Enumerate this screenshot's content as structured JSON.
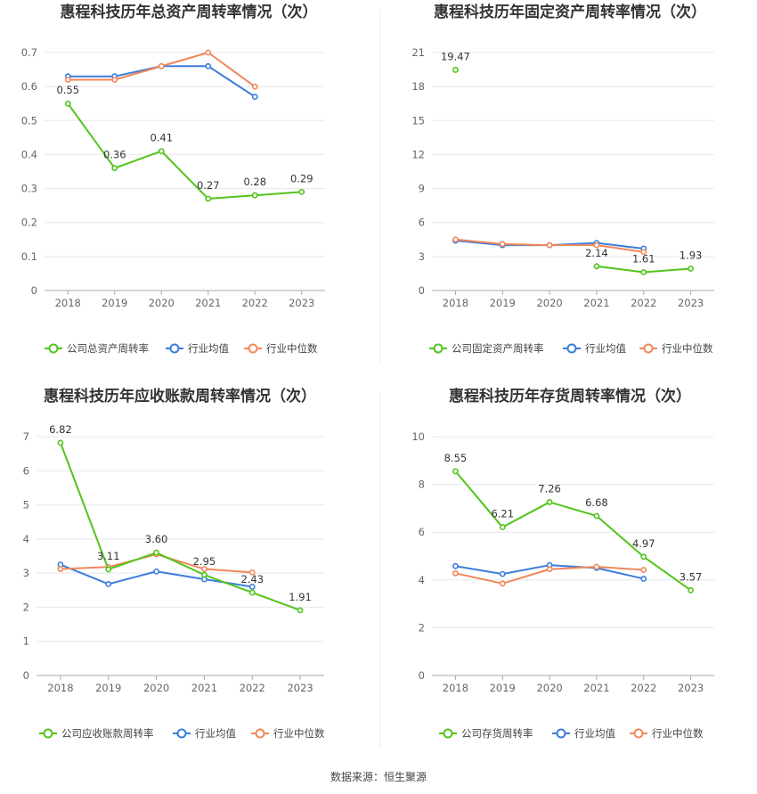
{
  "colors": {
    "company": "#52c41a",
    "industry_avg": "#3d7ddb",
    "industry_median": "#f0875a",
    "grid": "#e6e8ef",
    "axis": "#aaaaaa",
    "divider": "#eeeeee"
  },
  "source_text": "数据来源：恒生聚源",
  "chart_data": [
    {
      "type": "line",
      "title": "惠程科技历年总资产周转率情况（次）",
      "categories": [
        "2018",
        "2019",
        "2020",
        "2021",
        "2022",
        "2023"
      ],
      "ylim": [
        0,
        0.7
      ],
      "yticks": [
        0,
        0.1,
        0.2,
        0.3,
        0.4,
        0.5,
        0.6,
        0.7
      ],
      "ytick_labels": [
        "0",
        "0.1",
        "0.2",
        "0.3",
        "0.4",
        "0.5",
        "0.6",
        "0.7"
      ],
      "grid": true,
      "legend_position": "bottom",
      "series": [
        {
          "name": "公司总资产周转率",
          "role": "company",
          "values": [
            0.55,
            0.36,
            0.41,
            0.27,
            0.28,
            0.29
          ],
          "labels": [
            "0.55",
            "0.36",
            "0.41",
            "0.27",
            "0.28",
            "0.29"
          ]
        },
        {
          "name": "行业均值",
          "role": "industry_avg",
          "values": [
            0.63,
            0.63,
            0.66,
            0.66,
            0.57,
            null
          ]
        },
        {
          "name": "行业中位数",
          "role": "industry_median",
          "values": [
            0.62,
            0.62,
            0.66,
            0.7,
            0.6,
            null
          ]
        }
      ]
    },
    {
      "type": "line",
      "title": "惠程科技历年固定资产周转率情况（次）",
      "categories": [
        "2018",
        "2019",
        "2020",
        "2021",
        "2022",
        "2023"
      ],
      "ylim": [
        0,
        21
      ],
      "yticks": [
        0,
        3,
        6,
        9,
        12,
        15,
        18,
        21
      ],
      "ytick_labels": [
        "0",
        "3",
        "6",
        "9",
        "12",
        "15",
        "18",
        "21"
      ],
      "grid": true,
      "legend_position": "bottom",
      "series": [
        {
          "name": "公司固定资产周转率",
          "role": "company",
          "values": [
            19.47,
            null,
            null,
            2.14,
            1.61,
            1.93
          ],
          "labels": [
            "19.47",
            null,
            null,
            "2.14",
            "1.61",
            "1.93"
          ]
        },
        {
          "name": "行业均值",
          "role": "industry_avg",
          "values": [
            4.4,
            4.0,
            4.0,
            4.2,
            3.7,
            null
          ]
        },
        {
          "name": "行业中位数",
          "role": "industry_median",
          "values": [
            4.5,
            4.1,
            4.0,
            4.0,
            3.4,
            null
          ]
        }
      ]
    },
    {
      "type": "line",
      "title": "惠程科技历年应收账款周转率情况（次）",
      "categories": [
        "2018",
        "2019",
        "2020",
        "2021",
        "2022",
        "2023"
      ],
      "ylim": [
        0,
        7
      ],
      "yticks": [
        0,
        1,
        2,
        3,
        4,
        5,
        6,
        7
      ],
      "ytick_labels": [
        "0",
        "1",
        "2",
        "3",
        "4",
        "5",
        "6",
        "7"
      ],
      "grid": true,
      "legend_position": "bottom",
      "series": [
        {
          "name": "公司应收账款周转率",
          "role": "company",
          "values": [
            6.82,
            3.11,
            3.6,
            2.95,
            2.43,
            1.91
          ],
          "labels": [
            "6.82",
            "3.11",
            "3.60",
            "2.95",
            "2.43",
            "1.91"
          ]
        },
        {
          "name": "行业均值",
          "role": "industry_avg",
          "values": [
            3.25,
            2.68,
            3.05,
            2.82,
            2.6,
            null
          ]
        },
        {
          "name": "行业中位数",
          "role": "industry_median",
          "values": [
            3.12,
            3.18,
            3.55,
            3.12,
            3.02,
            null
          ]
        }
      ]
    },
    {
      "type": "line",
      "title": "惠程科技历年存货周转率情况（次）",
      "categories": [
        "2018",
        "2019",
        "2020",
        "2021",
        "2022",
        "2023"
      ],
      "ylim": [
        0,
        10
      ],
      "yticks": [
        0,
        2,
        4,
        6,
        8,
        10
      ],
      "ytick_labels": [
        "0",
        "2",
        "4",
        "6",
        "8",
        "10"
      ],
      "grid": true,
      "legend_position": "bottom",
      "series": [
        {
          "name": "公司存货周转率",
          "role": "company",
          "values": [
            8.55,
            6.21,
            7.26,
            6.68,
            4.97,
            3.57
          ],
          "labels": [
            "8.55",
            "6.21",
            "7.26",
            "6.68",
            "4.97",
            "3.57"
          ]
        },
        {
          "name": "行业均值",
          "role": "industry_avg",
          "values": [
            4.58,
            4.25,
            4.62,
            4.5,
            4.05,
            null
          ]
        },
        {
          "name": "行业中位数",
          "role": "industry_median",
          "values": [
            4.28,
            3.85,
            4.45,
            4.55,
            4.42,
            null
          ]
        }
      ]
    }
  ]
}
